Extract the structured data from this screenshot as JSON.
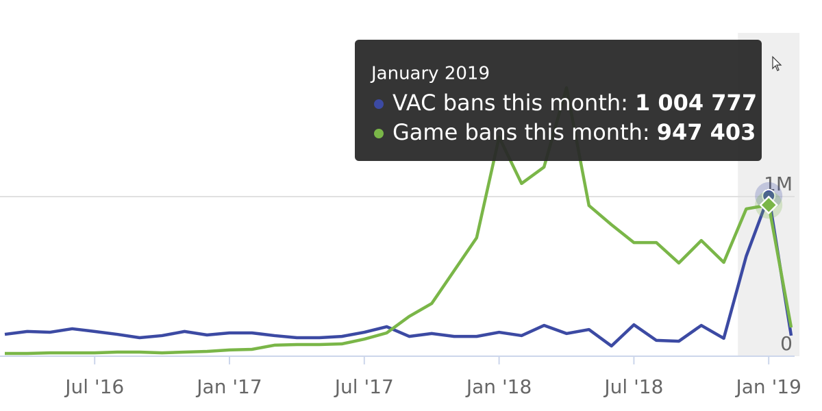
{
  "chart_data": {
    "type": "line",
    "x": [
      "2016-03",
      "2016-04",
      "2016-05",
      "2016-06",
      "2016-07",
      "2016-08",
      "2016-09",
      "2016-10",
      "2016-11",
      "2016-12",
      "2017-01",
      "2017-02",
      "2017-03",
      "2017-04",
      "2017-05",
      "2017-06",
      "2017-07",
      "2017-08",
      "2017-09",
      "2017-10",
      "2017-11",
      "2017-12",
      "2018-01",
      "2018-02",
      "2018-03",
      "2018-04",
      "2018-05",
      "2018-06",
      "2018-07",
      "2018-08",
      "2018-09",
      "2018-10",
      "2018-11",
      "2018-12",
      "2019-01",
      "2019-02"
    ],
    "series": [
      {
        "name": "VAC bans this month:",
        "color": "#3c4aa3",
        "values": [
          137000,
          155000,
          150000,
          172000,
          155000,
          137000,
          116000,
          129000,
          155000,
          133000,
          146000,
          146000,
          129000,
          116000,
          116000,
          124000,
          150000,
          185000,
          124000,
          142000,
          124000,
          124000,
          150000,
          129000,
          193000,
          142000,
          167000,
          64000,
          197000,
          99000,
          94000,
          193000,
          112000,
          627000,
          1004777,
          129000
        ]
      },
      {
        "name": "Game bans this month:",
        "color": "#7ab648",
        "values": [
          17000,
          17000,
          21000,
          21000,
          21000,
          26000,
          26000,
          21000,
          26000,
          30000,
          39000,
          43000,
          69000,
          73000,
          73000,
          77000,
          107000,
          146000,
          249000,
          330000,
          536000,
          742000,
          1373000,
          1082000,
          1185000,
          1682000,
          944000,
          824000,
          712000,
          712000,
          584000,
          725000,
          588000,
          923000,
          947403,
          180000
        ]
      }
    ],
    "xlim": [
      "2016-03",
      "2019-02"
    ],
    "xticks": [
      {
        "value": "2016-07",
        "label": "Jul '16"
      },
      {
        "value": "2017-01",
        "label": "Jan '17"
      },
      {
        "value": "2017-07",
        "label": "Jul '17"
      },
      {
        "value": "2018-01",
        "label": "Jan '18"
      },
      {
        "value": "2018-07",
        "label": "Jul '18"
      },
      {
        "value": "2019-01",
        "label": "Jan '19"
      }
    ],
    "ylim": [
      0,
      2000000
    ],
    "yticks": [
      0,
      {
        "value": 1000000,
        "label": "1M"
      }
    ],
    "grid": true,
    "tooltip": {
      "x": "2019-01",
      "title": "January 2019",
      "value_labels": [
        "1 004 777",
        "947 403"
      ]
    }
  }
}
